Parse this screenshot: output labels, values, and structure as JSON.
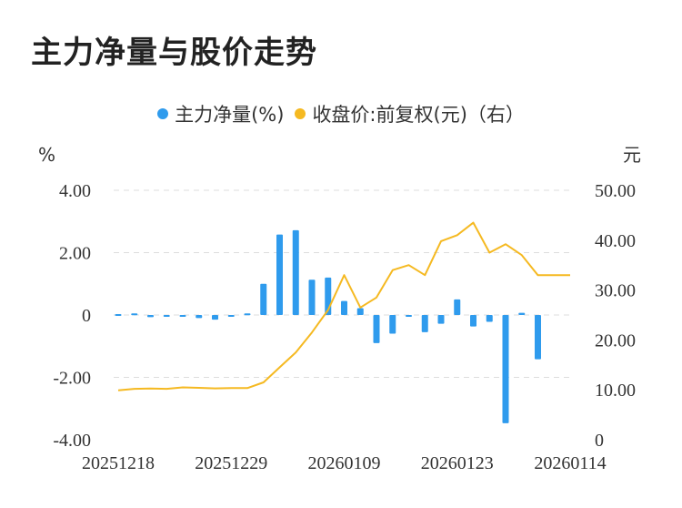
{
  "title": "主力净量与股价走势",
  "colors": {
    "bar": "#2f9bed",
    "line": "#f5b921",
    "grid": "#dddddd",
    "text": "#333333"
  },
  "chart_data": {
    "type": "bar+line",
    "legend": [
      {
        "name": "主力净量(%)",
        "color": "#2f9bed"
      },
      {
        "name": "收盘价:前复权(元)（右）",
        "color": "#f5b921"
      }
    ],
    "left_axis": {
      "unit": "%",
      "ylim": [
        -4,
        4
      ],
      "ticks": [
        "4.00",
        "2.00",
        "0",
        "-2.00",
        "-4.00"
      ]
    },
    "right_axis": {
      "unit": "元",
      "ylim": [
        0,
        50
      ],
      "ticks": [
        "50.00",
        "40.00",
        "30.00",
        "20.00",
        "10.00",
        "0"
      ]
    },
    "x_tick_labels": [
      "20251218",
      "20251229",
      "20260109",
      "20260123",
      "20260114"
    ],
    "x_tick_index": [
      0,
      7,
      14,
      21,
      28
    ],
    "series": [
      {
        "name": "主力净量(%)",
        "type": "bar",
        "values": [
          0.03,
          0.05,
          -0.07,
          -0.02,
          -0.03,
          -0.1,
          -0.15,
          -0.04,
          0.05,
          1.0,
          2.58,
          2.72,
          1.13,
          1.2,
          0.45,
          0.22,
          -0.9,
          -0.6,
          -0.03,
          -0.55,
          -0.28,
          0.5,
          -0.37,
          -0.22,
          -3.47,
          0.07,
          -1.42,
          0.0,
          0.0
        ]
      },
      {
        "name": "收盘价:前复权(元)（右）",
        "type": "line",
        "values": [
          9.9,
          10.2,
          10.25,
          10.2,
          10.5,
          10.4,
          10.3,
          10.35,
          10.35,
          11.5,
          14.5,
          17.5,
          21.5,
          26.0,
          33.0,
          26.5,
          28.5,
          34.0,
          35.0,
          33.0,
          39.8,
          41.0,
          43.5,
          37.5,
          39.2,
          37.0,
          33.0,
          33.0,
          33.0
        ]
      }
    ]
  }
}
